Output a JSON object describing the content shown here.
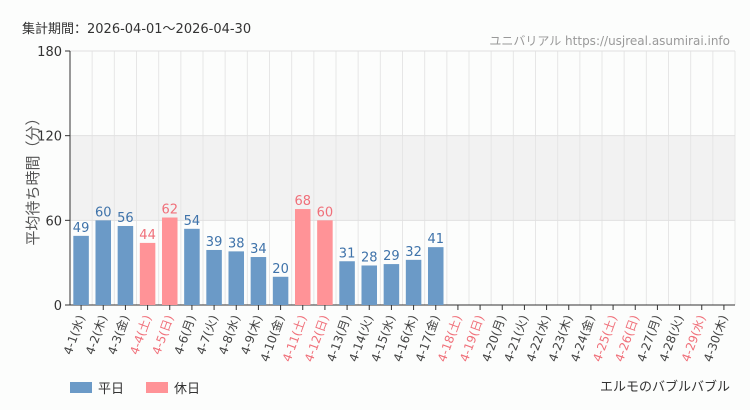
{
  "header": {
    "period": "集計期間：2026-04-01〜2026-04-30",
    "credit": "ユニバリアル  https://usjreal.asumirai.info"
  },
  "footer": {
    "attraction": "エルモのバブルバブル"
  },
  "colors": {
    "weekday": "#6b9ac7",
    "holiday": "#ff9397",
    "weekday_label": "#3f73aa",
    "holiday_label": "#f0707a",
    "band": "#f2f2f2"
  },
  "chart_data": {
    "type": "bar",
    "ylabel": "平均待ち時間（分）",
    "ylim": [
      0,
      180
    ],
    "yticks": [
      0,
      60,
      120,
      180
    ],
    "grid": true,
    "legend_placement": "bottom-left",
    "legend": [
      {
        "name": "平日",
        "color": "#6b9ac7"
      },
      {
        "name": "休日",
        "color": "#ff9397"
      }
    ],
    "categories": [
      "4-1(水)",
      "4-2(木)",
      "4-3(金)",
      "4-4(土)",
      "4-5(日)",
      "4-6(月)",
      "4-7(火)",
      "4-8(水)",
      "4-9(木)",
      "4-10(金)",
      "4-11(土)",
      "4-12(日)",
      "4-13(月)",
      "4-14(火)",
      "4-15(水)",
      "4-16(木)",
      "4-17(金)",
      "4-18(土)",
      "4-19(日)",
      "4-20(月)",
      "4-21(火)",
      "4-22(水)",
      "4-23(木)",
      "4-24(金)",
      "4-25(土)",
      "4-26(日)",
      "4-27(月)",
      "4-28(火)",
      "4-29(水)",
      "4-30(木)"
    ],
    "holiday": [
      false,
      false,
      false,
      true,
      true,
      false,
      false,
      false,
      false,
      false,
      true,
      true,
      false,
      false,
      false,
      false,
      false,
      true,
      true,
      false,
      false,
      false,
      false,
      false,
      true,
      true,
      false,
      false,
      true,
      false
    ],
    "values": [
      49,
      60,
      56,
      44,
      62,
      54,
      39,
      38,
      34,
      20,
      68,
      60,
      31,
      28,
      29,
      32,
      41,
      null,
      null,
      null,
      null,
      null,
      null,
      null,
      null,
      null,
      null,
      null,
      null,
      null
    ]
  }
}
